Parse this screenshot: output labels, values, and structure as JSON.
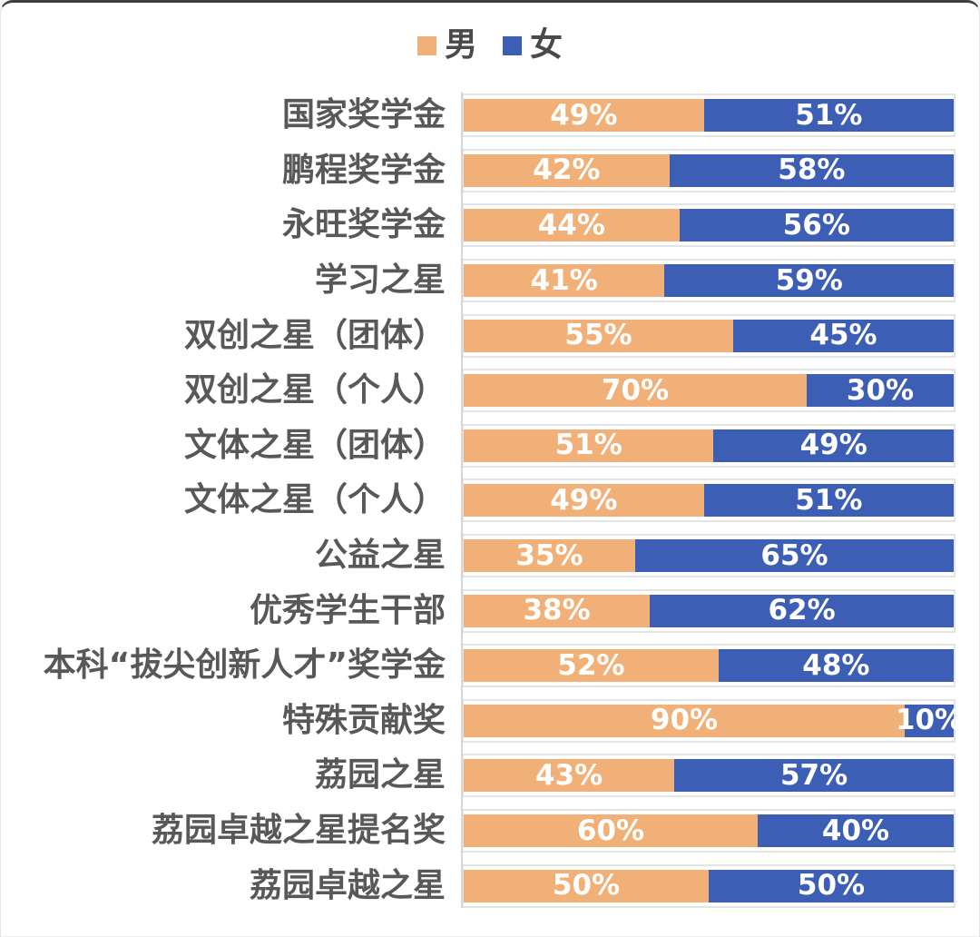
{
  "page": {
    "background": "#ffffff",
    "top_edge_color": "#3f3f3f",
    "border_color": "#e3e3e3"
  },
  "legend": {
    "position": "top-center",
    "items": [
      {
        "label": "男",
        "color": "#F0B077"
      },
      {
        "label": "女",
        "color": "#3C5EB4"
      }
    ]
  },
  "chart_data": {
    "type": "bar",
    "orientation": "horizontal",
    "stacked": true,
    "unit": "%",
    "xlim": [
      0,
      100
    ],
    "title": "",
    "xlabel": "",
    "ylabel": "",
    "legend_position": "top-center",
    "gridlines": "light-gray band borders around each category row",
    "value_labels": "inside segments, white bold, formatted as N%",
    "categories": [
      "国家奖学金",
      "鹏程奖学金",
      "永旺奖学金",
      "学习之星",
      "双创之星（团体）",
      "双创之星（个人）",
      "文体之星（团体）",
      "文体之星（个人）",
      "公益之星",
      "优秀学生干部",
      "本科“拔尖创新人才”奖学金",
      "特殊贡献奖",
      "荔园之星",
      "荔园卓越之星提名奖",
      "荔园卓越之星"
    ],
    "series": [
      {
        "name": "男",
        "color": "#F0B077",
        "values": [
          49,
          42,
          44,
          41,
          55,
          70,
          51,
          49,
          35,
          38,
          52,
          90,
          43,
          60,
          50
        ]
      },
      {
        "name": "女",
        "color": "#3C5EB4",
        "values": [
          51,
          58,
          56,
          59,
          45,
          30,
          49,
          51,
          65,
          62,
          48,
          10,
          57,
          40,
          50
        ]
      }
    ],
    "colors": {
      "male_bar": "#F0B077",
      "female_bar": "#3C5EB4",
      "category_label_text": "#585858",
      "value_label_text": "#ffffff",
      "band_border": "#e4e4e4",
      "axis_line": "#d6d6d6"
    }
  }
}
